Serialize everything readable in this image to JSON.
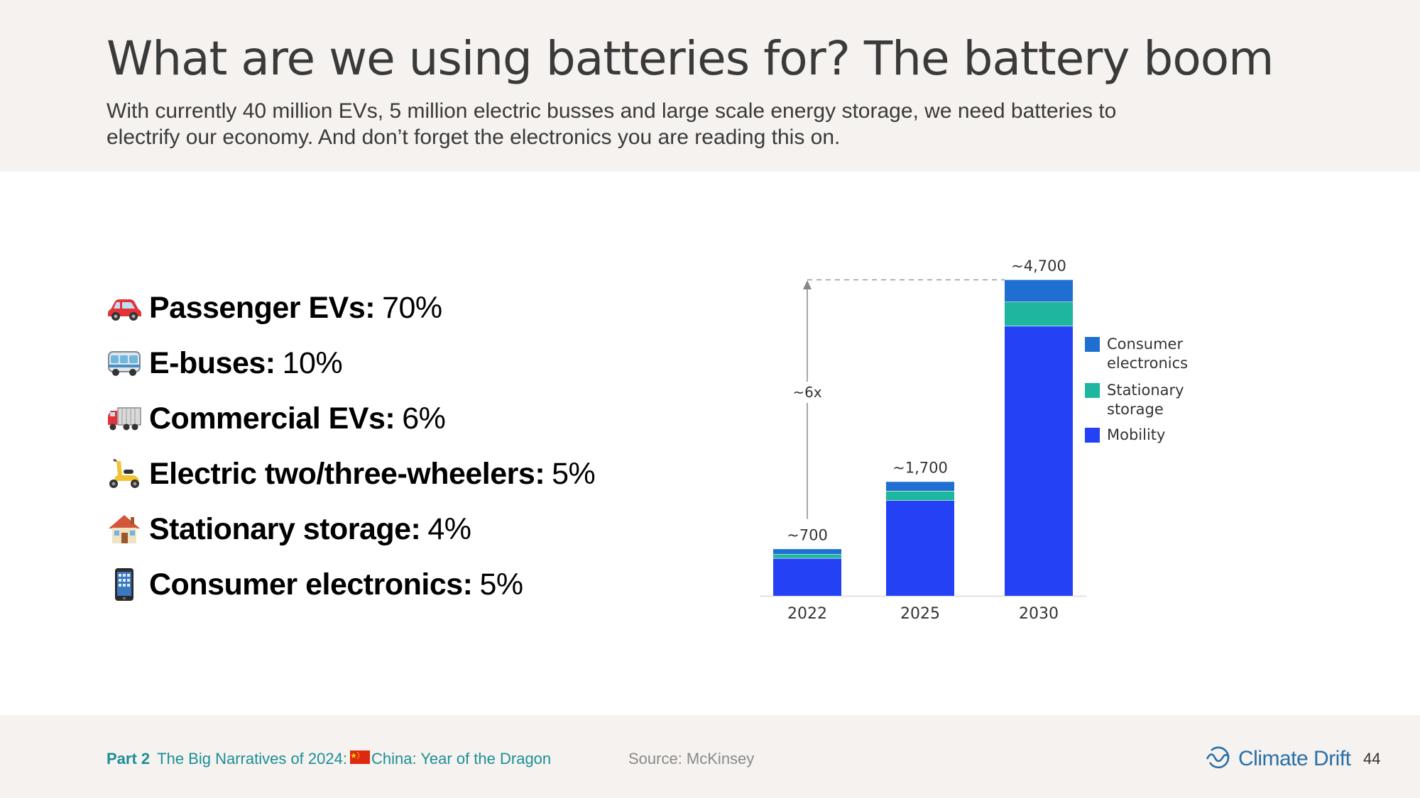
{
  "header": {
    "title": "What are we using batteries for? The battery boom",
    "subtitle": "With currently 40 million EVs, 5 million electric busses and large scale energy storage, we need batteries to electrify our economy. And don’t forget the electronics you are reading this on."
  },
  "list": [
    {
      "icon": "car-icon",
      "label": "Passenger EVs:",
      "value": "70%"
    },
    {
      "icon": "bus-icon",
      "label": "E-buses:",
      "value": "10%"
    },
    {
      "icon": "truck-icon",
      "label": "Commercial EVs:",
      "value": "6%"
    },
    {
      "icon": "scooter-icon",
      "label": "Electric two/three-wheelers:",
      "value": "5%"
    },
    {
      "icon": "house-icon",
      "label": "Stationary storage:",
      "value": "4%"
    },
    {
      "icon": "phone-icon",
      "label": "Consumer electronics:",
      "value": "5%"
    }
  ],
  "chart_data": {
    "type": "bar",
    "stacked": true,
    "categories": [
      "2022",
      "2025",
      "2030"
    ],
    "series": [
      {
        "name": "Mobility",
        "values": [
          560,
          1420,
          4010
        ],
        "color": "#2541f5"
      },
      {
        "name": "Stationary storage",
        "values": [
          60,
          140,
          360
        ],
        "color": "#1fb6a0"
      },
      {
        "name": "Consumer electronics",
        "values": [
          80,
          140,
          330
        ],
        "color": "#1e6fcf"
      }
    ],
    "total_labels": [
      "~700",
      "~1,700",
      "~4,700"
    ],
    "totals": [
      700,
      1700,
      4700
    ],
    "annotation": "~6x",
    "legend_position": "right",
    "grid": false
  },
  "footer": {
    "part": "Part 2",
    "series_title": "The Big Narratives of 2024:",
    "chapter": "China: Year of the Dragon",
    "source": "Source: McKinsey",
    "brand": "Climate Drift",
    "page": "44"
  }
}
